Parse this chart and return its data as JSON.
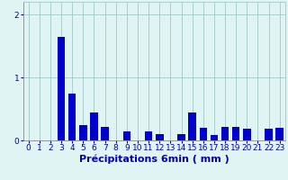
{
  "categories": [
    0,
    1,
    2,
    3,
    4,
    5,
    6,
    7,
    8,
    9,
    10,
    11,
    12,
    13,
    14,
    15,
    16,
    17,
    18,
    19,
    20,
    21,
    22,
    23
  ],
  "values": [
    0.0,
    0.0,
    0.0,
    1.65,
    0.75,
    0.25,
    0.45,
    0.22,
    0.0,
    0.15,
    0.0,
    0.15,
    0.1,
    0.0,
    0.1,
    0.45,
    0.2,
    0.08,
    0.22,
    0.22,
    0.18,
    0.0,
    0.18,
    0.2
  ],
  "bar_color": "#0000cc",
  "background_color": "#e0f4f4",
  "grid_color": "#a0c8c8",
  "axis_label_color": "#0000bb",
  "tick_color": "#0000bb",
  "xlabel": "Précipitations 6min ( mm )",
  "ylim": [
    0,
    2.2
  ],
  "yticks": [
    0,
    1,
    2
  ],
  "xlabel_fontsize": 8,
  "tick_fontsize": 6.5
}
